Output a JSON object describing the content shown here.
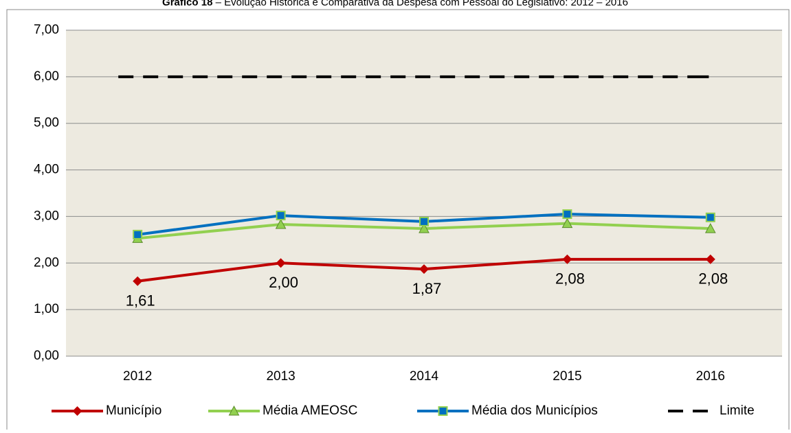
{
  "chart_data": {
    "type": "line",
    "title_bold": "Gráfico 18",
    "title": "– Evolução Histórica e Comparativa da Despesa com Pessoal do Legislativo: 2012 – 2016",
    "categories": [
      "2012",
      "2013",
      "2014",
      "2015",
      "2016"
    ],
    "series": [
      {
        "name": "Município",
        "color": "#c00000",
        "marker": "diamond",
        "values": [
          1.61,
          2.0,
          1.87,
          2.08,
          2.08
        ],
        "value_labels": [
          "1,61",
          "2,00",
          "1,87",
          "2,08",
          "2,08"
        ]
      },
      {
        "name": "Média AMEOSC",
        "color": "#92d050",
        "marker": "triangle",
        "values": [
          2.53,
          2.83,
          2.74,
          2.85,
          2.74
        ]
      },
      {
        "name": "Média dos Municípios",
        "color": "#0070c0",
        "marker": "square",
        "values": [
          2.61,
          3.02,
          2.89,
          3.05,
          2.98
        ]
      },
      {
        "name": "Limite",
        "color": "#000000",
        "marker": "none",
        "dashed": true,
        "values": [
          6,
          6,
          6,
          6,
          6
        ]
      }
    ],
    "ylim": [
      0,
      7
    ],
    "yticks": [
      {
        "value": 0,
        "label": "0,00"
      },
      {
        "value": 1,
        "label": "1,00"
      },
      {
        "value": 2,
        "label": "2,00"
      },
      {
        "value": 3,
        "label": "3,00"
      },
      {
        "value": 4,
        "label": "4,00"
      },
      {
        "value": 5,
        "label": "5,00"
      },
      {
        "value": 6,
        "label": "6,00"
      },
      {
        "value": 7,
        "label": "7,00"
      }
    ],
    "grid": true,
    "legend": "bottom"
  }
}
